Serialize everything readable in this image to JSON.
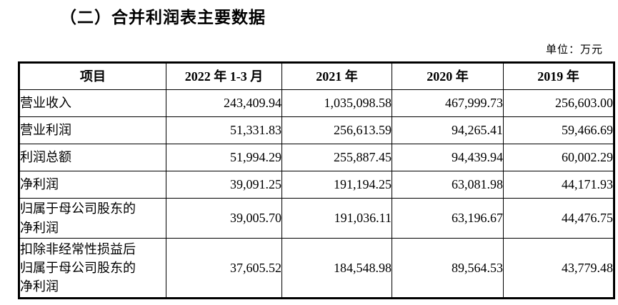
{
  "title": "（二）合并利润表主要数据",
  "unit_label": "单位：万元",
  "table": {
    "headers": [
      "项目",
      "2022 年 1-3 月",
      "2021 年",
      "2020 年",
      "2019 年"
    ],
    "rows": [
      {
        "item": [
          "营业收入"
        ],
        "values": [
          "243,409.94",
          "1,035,098.58",
          "467,999.73",
          "256,603.00"
        ]
      },
      {
        "item": [
          "营业利润"
        ],
        "values": [
          "51,331.83",
          "256,613.59",
          "94,265.41",
          "59,466.69"
        ]
      },
      {
        "item": [
          "利润总额"
        ],
        "values": [
          "51,994.29",
          "255,887.45",
          "94,439.94",
          "60,002.29"
        ]
      },
      {
        "item": [
          "净利润"
        ],
        "values": [
          "39,091.25",
          "191,194.25",
          "63,081.98",
          "44,171.93"
        ]
      },
      {
        "item": [
          "归属于母公司股东的",
          "净利润"
        ],
        "values": [
          "39,005.70",
          "191,036.11",
          "63,196.67",
          "44,476.75"
        ]
      },
      {
        "item": [
          "扣除非经常性损益后",
          "归属于母公司股东的",
          "净利润"
        ],
        "values": [
          "37,605.52",
          "184,548.98",
          "89,564.53",
          "43,779.48"
        ]
      }
    ]
  }
}
